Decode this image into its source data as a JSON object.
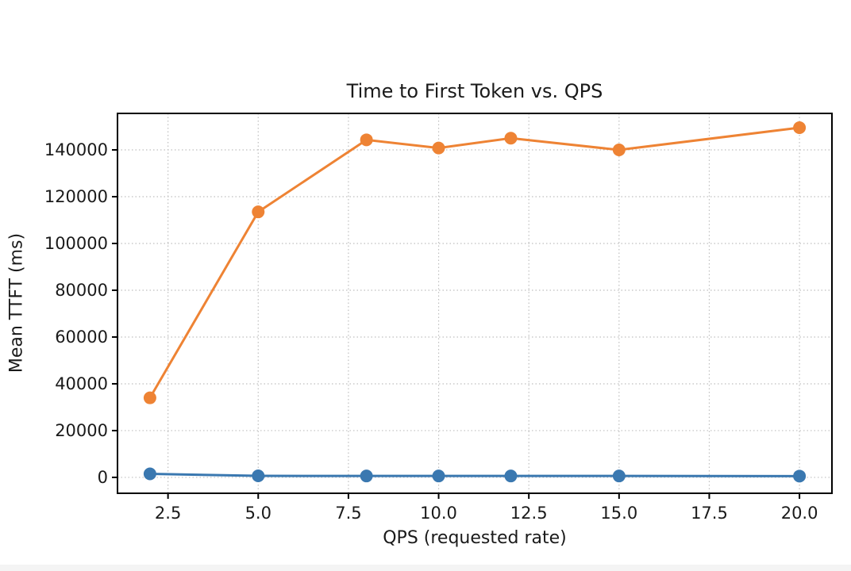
{
  "page": {
    "background": "#ffffff",
    "statusbar_color": "#f4f4f4"
  },
  "chart_data": {
    "type": "line",
    "title": "Time to First Token vs. QPS",
    "xlabel": "QPS (requested rate)",
    "ylabel": "Mean TTFT (ms)",
    "x": [
      2,
      5,
      8,
      10,
      12,
      15,
      20
    ],
    "series": [
      {
        "name": "blue-series",
        "color": "#3a78b0",
        "values": [
          1500,
          650,
          600,
          600,
          600,
          600,
          550
        ]
      },
      {
        "name": "orange-series",
        "color": "#ee8334",
        "values": [
          34000,
          113500,
          144300,
          140800,
          145000,
          140000,
          149500
        ]
      }
    ],
    "xticks": [
      2.5,
      5.0,
      7.5,
      10.0,
      12.5,
      15.0,
      17.5,
      20.0
    ],
    "xtick_labels": [
      "2.5",
      "5.0",
      "7.5",
      "10.0",
      "12.5",
      "15.0",
      "17.5",
      "20.0"
    ],
    "yticks": [
      0,
      20000,
      40000,
      60000,
      80000,
      100000,
      120000,
      140000
    ],
    "ytick_labels": [
      "0",
      "20000",
      "40000",
      "60000",
      "80000",
      "100000",
      "120000",
      "140000"
    ],
    "xlim": [
      1.1,
      20.9
    ],
    "ylim": [
      -6800,
      155600
    ],
    "grid": true,
    "grid_style": "dotted",
    "grid_color": "#bfbfbf",
    "frame_color": "#000000",
    "text_color": "#1a1a1a",
    "legend": "none"
  }
}
